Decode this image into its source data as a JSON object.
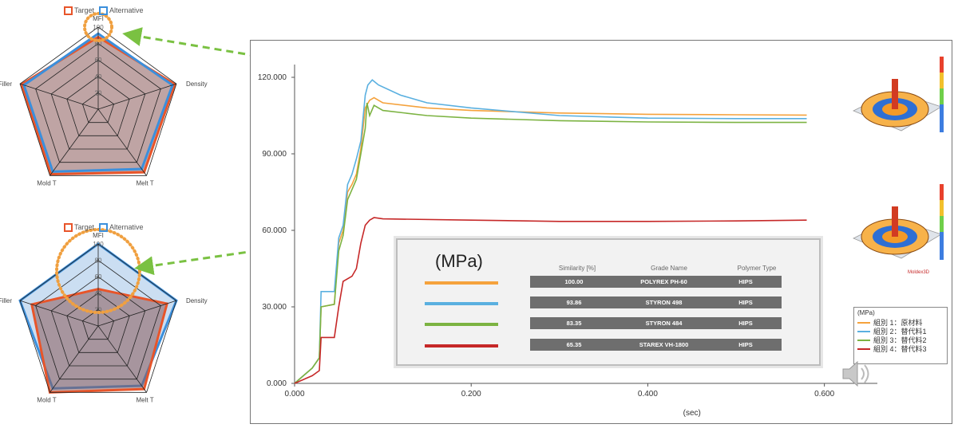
{
  "colors": {
    "target": "#e8552a",
    "alternative": "#3b8fdc",
    "fill_target": "#8a5a5a",
    "fill_alt": "#a9c8ea",
    "callout": "#f0a040",
    "arrow": "#7ac142",
    "orange": "#f5a23c",
    "blue": "#5ab0e0",
    "green": "#7cb342",
    "red": "#c62828"
  },
  "radar_charts": [
    {
      "legend": [
        "Target",
        "Alternative"
      ],
      "axes": [
        "MFI",
        "Density",
        "Melt T",
        "Mold T",
        "Filler"
      ],
      "rings": [
        20,
        40,
        60,
        80,
        100
      ],
      "ring_labels": [
        "20",
        "40",
        "60",
        "80",
        "100"
      ],
      "series": [
        {
          "name": "Target",
          "values": [
            88,
            98,
            95,
            98,
            98
          ]
        },
        {
          "name": "Alternative",
          "values": [
            92,
            95,
            90,
            94,
            95
          ]
        }
      ]
    },
    {
      "legend": [
        "Target",
        "Alternative"
      ],
      "axes": [
        "MFI",
        "Density",
        "Melt T",
        "Mold T",
        "Filler"
      ],
      "rings": [
        20,
        40,
        60,
        80,
        100
      ],
      "ring_labels": [
        "20",
        "40",
        "60",
        "80",
        "100"
      ],
      "series": [
        {
          "name": "Target",
          "values": [
            45,
            88,
            95,
            100,
            85
          ]
        },
        {
          "name": "Alternative",
          "values": [
            100,
            100,
            90,
            94,
            100
          ]
        }
      ]
    }
  ],
  "chart_data": {
    "type": "line",
    "xlabel": "(sec)",
    "ylabel": "",
    "xlim": [
      0,
      0.66
    ],
    "ylim": [
      0,
      125
    ],
    "x_ticks": [
      0.0,
      0.2,
      0.4,
      0.6
    ],
    "x_tick_labels": [
      "0.000",
      "0.200",
      "0.400",
      "0.600"
    ],
    "y_ticks": [
      0,
      30,
      60,
      90,
      120
    ],
    "y_tick_labels": [
      "0.000",
      "30.000",
      "60.000",
      "90.000",
      "120.000"
    ],
    "series": [
      {
        "name": "組別 1：原材料",
        "color": "#f5a23c",
        "points": [
          [
            0,
            0
          ],
          [
            0.02,
            6
          ],
          [
            0.028,
            10
          ],
          [
            0.03,
            30
          ],
          [
            0.045,
            31
          ],
          [
            0.05,
            55
          ],
          [
            0.055,
            60
          ],
          [
            0.06,
            75
          ],
          [
            0.065,
            78
          ],
          [
            0.07,
            82
          ],
          [
            0.075,
            92
          ],
          [
            0.08,
            108
          ],
          [
            0.085,
            111
          ],
          [
            0.09,
            112
          ],
          [
            0.1,
            110
          ],
          [
            0.15,
            108
          ],
          [
            0.2,
            107
          ],
          [
            0.3,
            106
          ],
          [
            0.4,
            105.5
          ],
          [
            0.5,
            105.3
          ],
          [
            0.58,
            105.2
          ]
        ]
      },
      {
        "name": "組別 2：替代料1",
        "color": "#5ab0e0",
        "points": [
          [
            0,
            0
          ],
          [
            0.02,
            6
          ],
          [
            0.028,
            10
          ],
          [
            0.03,
            36
          ],
          [
            0.045,
            36
          ],
          [
            0.05,
            57
          ],
          [
            0.055,
            62
          ],
          [
            0.06,
            78
          ],
          [
            0.065,
            82
          ],
          [
            0.07,
            88
          ],
          [
            0.075,
            95
          ],
          [
            0.08,
            113
          ],
          [
            0.083,
            117
          ],
          [
            0.088,
            119
          ],
          [
            0.095,
            117
          ],
          [
            0.12,
            113
          ],
          [
            0.15,
            110
          ],
          [
            0.2,
            108
          ],
          [
            0.3,
            105
          ],
          [
            0.4,
            104
          ],
          [
            0.5,
            103.8
          ],
          [
            0.58,
            103.8
          ]
        ]
      },
      {
        "name": "組別 3：替代料2",
        "color": "#7cb342",
        "points": [
          [
            0,
            0
          ],
          [
            0.02,
            6
          ],
          [
            0.028,
            10
          ],
          [
            0.03,
            30
          ],
          [
            0.045,
            31
          ],
          [
            0.05,
            52
          ],
          [
            0.055,
            58
          ],
          [
            0.06,
            72
          ],
          [
            0.065,
            76
          ],
          [
            0.07,
            80
          ],
          [
            0.075,
            90
          ],
          [
            0.08,
            100
          ],
          [
            0.082,
            110
          ],
          [
            0.085,
            105
          ],
          [
            0.09,
            109
          ],
          [
            0.1,
            107
          ],
          [
            0.15,
            105
          ],
          [
            0.2,
            104
          ],
          [
            0.3,
            103
          ],
          [
            0.4,
            102.5
          ],
          [
            0.5,
            102.3
          ],
          [
            0.58,
            102.3
          ]
        ]
      },
      {
        "name": "組別 4：替代料3",
        "color": "#c62828",
        "points": [
          [
            0,
            0
          ],
          [
            0.02,
            3
          ],
          [
            0.028,
            5
          ],
          [
            0.03,
            18
          ],
          [
            0.045,
            18
          ],
          [
            0.05,
            30
          ],
          [
            0.055,
            40
          ],
          [
            0.065,
            42
          ],
          [
            0.07,
            45
          ],
          [
            0.075,
            55
          ],
          [
            0.08,
            62
          ],
          [
            0.085,
            64
          ],
          [
            0.09,
            65
          ],
          [
            0.1,
            64.5
          ],
          [
            0.2,
            64
          ],
          [
            0.3,
            63.5
          ],
          [
            0.4,
            63.5
          ],
          [
            0.5,
            63.7
          ],
          [
            0.58,
            64
          ]
        ]
      }
    ]
  },
  "grade_table": {
    "unit": "(MPa)",
    "headers": [
      "Similarity [%]",
      "Grade Name",
      "Polymer Type"
    ],
    "rows": [
      {
        "similarity": "100.00",
        "grade": "POLYREX PH-60",
        "polymer": "HIPS",
        "color": "#f5a23c"
      },
      {
        "similarity": "93.86",
        "grade": "STYRON 498",
        "polymer": "HIPS",
        "color": "#5ab0e0"
      },
      {
        "similarity": "83.35",
        "grade": "STYRON 484",
        "polymer": "HIPS",
        "color": "#7cb342"
      },
      {
        "similarity": "65.35",
        "grade": "STAREX VH-1800",
        "polymer": "HIPS",
        "color": "#c62828"
      }
    ]
  },
  "series_legend": {
    "title": "(MPa)",
    "items": [
      {
        "label": "組別 1：原材料",
        "color": "#f5a23c"
      },
      {
        "label": "組別 2：替代料1",
        "color": "#5ab0e0"
      },
      {
        "label": "組別 3：替代料2",
        "color": "#7cb342"
      },
      {
        "label": "組別 4：替代料3",
        "color": "#c62828"
      }
    ]
  },
  "simulation_images": {
    "brand": "Moldex3D"
  },
  "icons": {
    "speaker": "speaker-icon"
  }
}
